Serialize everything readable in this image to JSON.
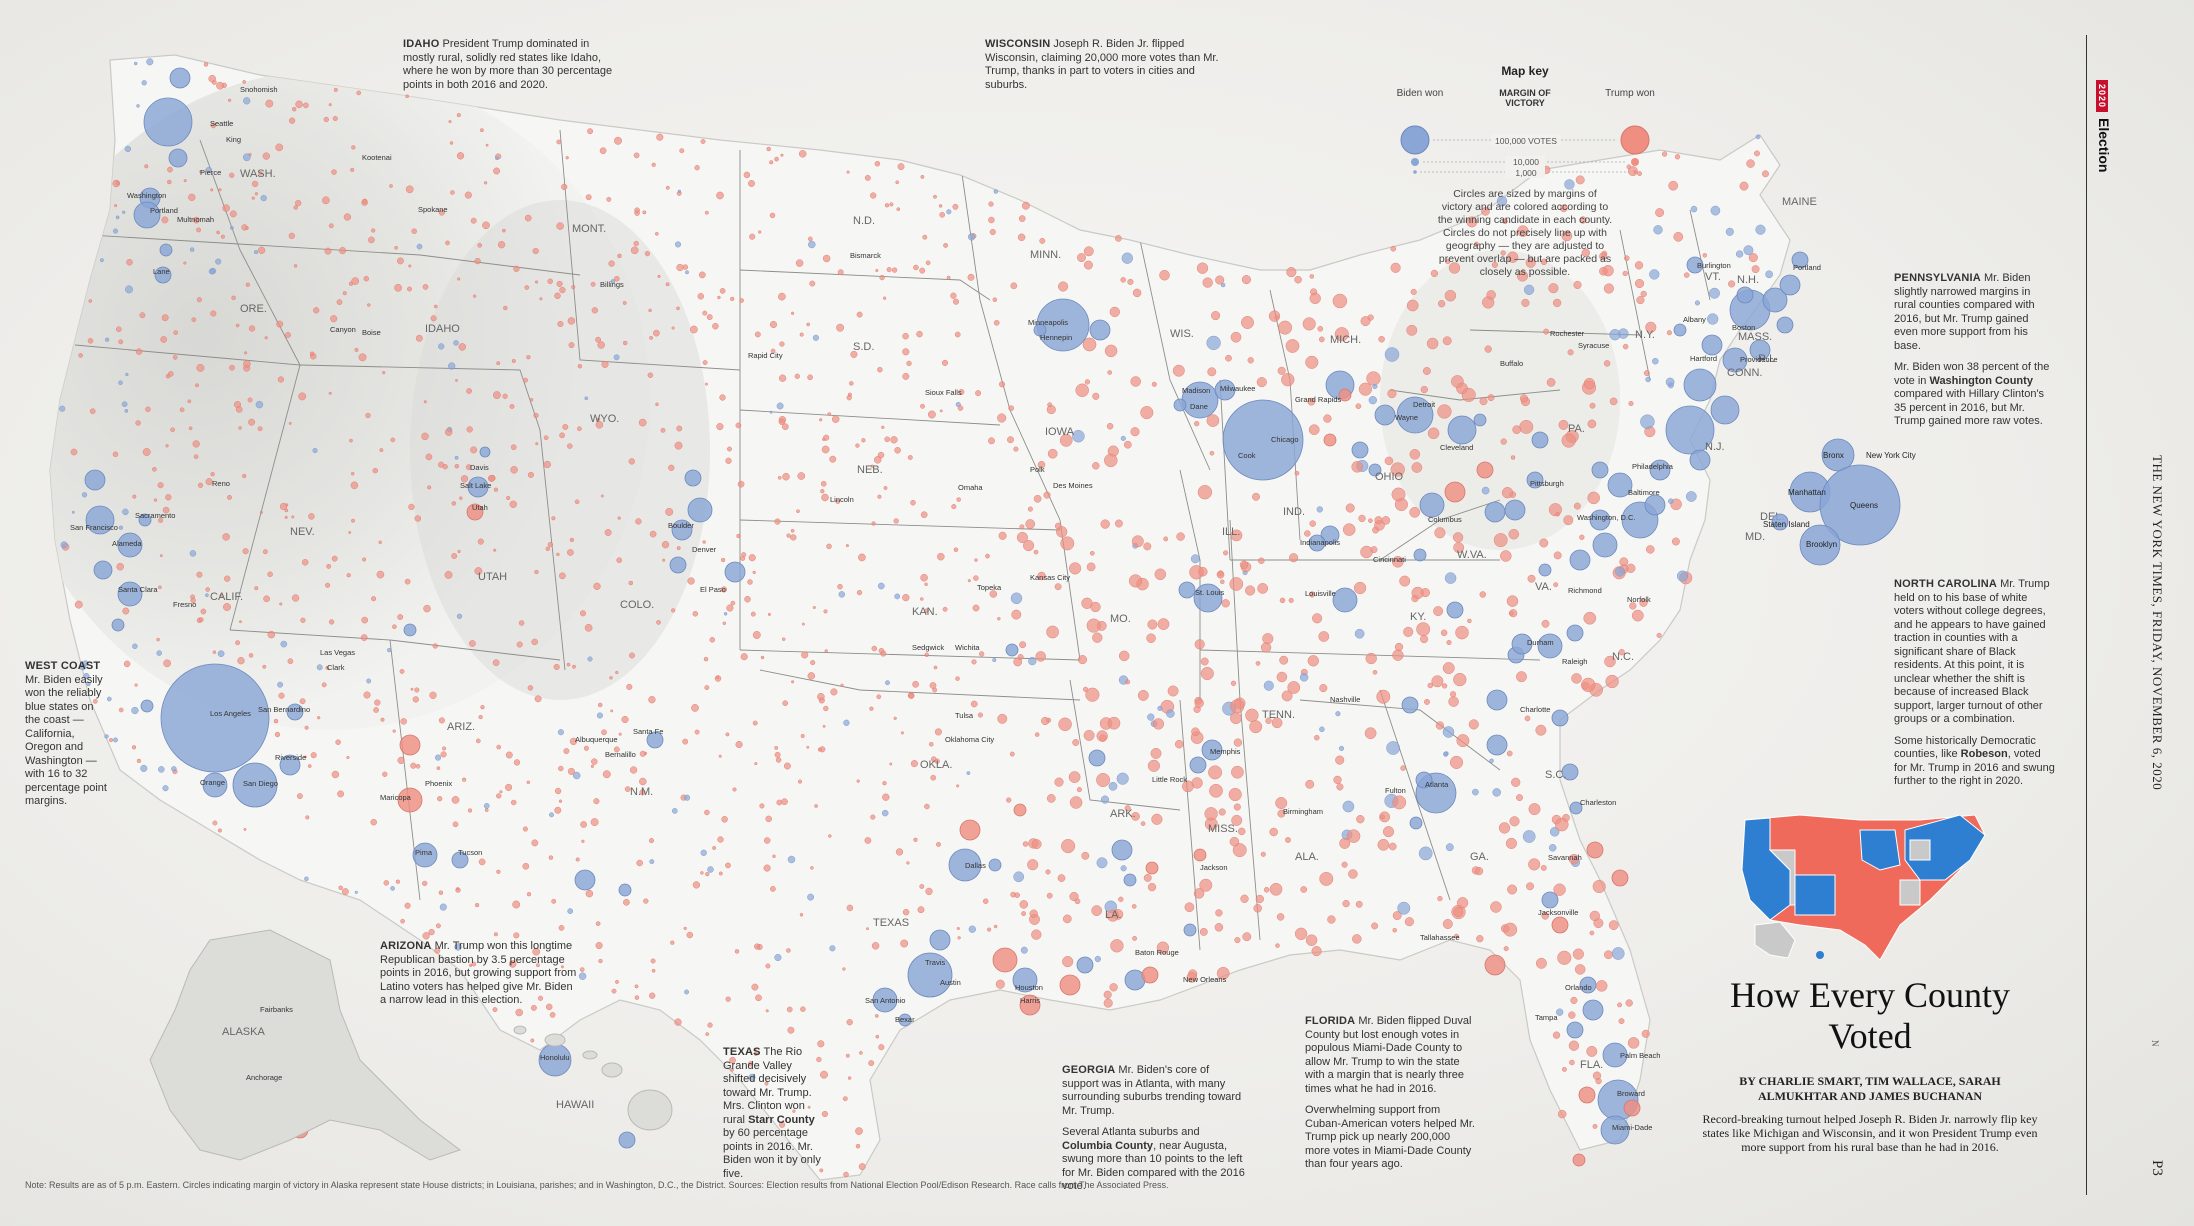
{
  "section": {
    "badge": "2020",
    "label": "Election"
  },
  "paper_line": "THE NEW YORK TIMES, FRIDAY, NOVEMBER 6, 2020",
  "page_number": "P3",
  "n_mark": "N",
  "headline": "How Every County Voted",
  "byline": "By CHARLIE SMART, TIM WALLACE, SARAH ALMUKHTAR and JAMES BUCHANAN",
  "dek": "Record-breaking turnout helped Joseph R. Biden Jr. narrowly flip key states like Michigan and Wisconsin, and it won President Trump even more support from his rural base than he had in 2016.",
  "note": "Note: Results are as of 5 p.m. Eastern. Circles indicating margin of victory in Alaska represent state House districts; in Louisiana, parishes; and in Washington, D.C., the District. Sources: Election results from National Election Pool/Edison Research. Race calls from The Associated Press.",
  "map_key": {
    "title": "Map key",
    "biden_label": "Biden won",
    "margin_label": "MARGIN OF VICTORY",
    "trump_label": "Trump won",
    "sizes": [
      "100,000 VOTES",
      "10,000",
      "1,000"
    ],
    "description": "Circles are sized by margins of victory and are colored according to the winning candidate in each county. Circles do not precisely line up with geography — they are adjusted to prevent overlap — but are packed as closely as possible."
  },
  "colors": {
    "biden": "#8aa6d6",
    "trump": "#ee8f82",
    "inset_biden": "#2e7fd1",
    "inset_trump": "#ef6a5a",
    "inset_other": "#c9c9c9"
  },
  "annotations": {
    "idaho": {
      "head": "IDAHO",
      "body": "President Trump dominated in mostly rural, solidly red states like Idaho, where he won by more than 30 percentage points in both 2016 and 2020."
    },
    "wisconsin": {
      "head": "WISCONSIN",
      "body": "Joseph R. Biden Jr. flipped Wisconsin, claiming 20,000 more votes than Mr. Trump, thanks in part to voters in cities and suburbs."
    },
    "pennsylvania": {
      "head": "PENNSYLVANIA",
      "body": "Mr. Biden slightly narrowed margins in rural counties compared with 2016, but Mr. Trump gained even more support from his base.",
      "body2_pre": "Mr. Biden won 38 percent of the vote in ",
      "body2_bold": "Washington County",
      "body2_post": " compared with Hillary Clinton's 35 percent in 2016, but Mr. Trump gained more raw votes."
    },
    "north_carolina": {
      "head": "NORTH CAROLINA",
      "body": "Mr. Trump held on to his base of white voters without college degrees, and he appears to have gained traction in counties with a significant share of Black residents. At this point, it is unclear whether the shift is because of increased Black support, larger turnout of other groups or a combination.",
      "body2_pre": "Some historically Democratic counties, like ",
      "body2_bold": "Robeson",
      "body2_post": ", voted for Mr. Trump in 2016 and swung further to the right in 2020."
    },
    "west_coast": {
      "head": "WEST COAST",
      "body": "Mr. Biden easily won the reliably blue states on the coast — California, Oregon and Washington — with 16 to 32 percentage point margins."
    },
    "arizona": {
      "head": "ARIZONA",
      "body": "Mr. Trump won this longtime Republican bastion by 3.5 percentage points in 2016, but growing support from Latino voters has helped give Mr. Biden a narrow lead in this election."
    },
    "texas": {
      "head": "TEXAS",
      "body_pre": "The Rio Grande Valley shifted decisively toward Mr. Trump. Mrs. Clinton won rural ",
      "body_bold": "Starr County",
      "body_post": " by 60 percentage points in 2016. Mr. Biden won it by only five."
    },
    "georgia": {
      "head": "GEORGIA",
      "body": "Mr. Biden's core of support was in Atlanta, with many surrounding suburbs trending toward Mr. Trump.",
      "body2_pre": "Several Atlanta suburbs and ",
      "body2_bold": "Columbia County",
      "body2_post": ", near Augusta, swung more than 10 points to the left for Mr. Biden compared with the 2016 vote."
    },
    "florida": {
      "head": "FLORIDA",
      "body": "Mr. Biden flipped Duval County but lost enough votes in populous Miami-Dade County to allow Mr. Trump to win the state with a margin that is nearly three times what he had in 2016.",
      "body2": "Overwhelming support from Cuban-American voters helped Mr. Trump pick up nearly 200,000 more votes in Miami-Dade County than four years ago."
    }
  },
  "state_labels": [
    "WASH.",
    "ORE.",
    "CALIF.",
    "IDAHO",
    "NEV.",
    "MONT.",
    "WYO.",
    "UTAH",
    "ARIZ.",
    "COLO.",
    "N.M.",
    "N.D.",
    "S.D.",
    "NEB.",
    "KAN.",
    "OKLA.",
    "TEXAS",
    "MINN.",
    "IOWA",
    "MO.",
    "ARK.",
    "LA.",
    "WIS.",
    "ILL.",
    "MICH.",
    "IND.",
    "OHIO",
    "KY.",
    "TENN.",
    "MISS.",
    "ALA.",
    "GA.",
    "FLA.",
    "S.C.",
    "N.C.",
    "VA.",
    "W.VA.",
    "PA.",
    "N.Y.",
    "VT.",
    "N.H.",
    "MAINE",
    "MASS.",
    "CONN.",
    "R.I.",
    "N.J.",
    "DEL.",
    "MD.",
    "ALASKA",
    "HAWAII"
  ],
  "place_labels": [
    "Seattle",
    "King",
    "Snohomish",
    "Pierce",
    "Portland",
    "Multnomah",
    "Washington",
    "Lane",
    "Spokane",
    "Kootenai",
    "Boise",
    "Canyon",
    "Reno",
    "Las Vegas",
    "Clark",
    "Salt Lake",
    "Utah",
    "Davis",
    "Denver",
    "Boulder",
    "El Paso",
    "Albuquerque",
    "Bernalillo",
    "Santa Fe",
    "Phoenix",
    "Maricopa",
    "Tucson",
    "Pima",
    "Los Angeles",
    "San Diego",
    "Orange",
    "Riverside",
    "San Bernardino",
    "San Francisco",
    "Alameda",
    "Santa Clara",
    "Sacramento",
    "Fresno",
    "Billings",
    "Bismarck",
    "Sioux Falls",
    "Rapid City",
    "Omaha",
    "Lincoln",
    "Des Moines",
    "Polk",
    "Kansas City",
    "Wichita",
    "Sedgwick",
    "Topeka",
    "Oklahoma City",
    "Tulsa",
    "Dallas",
    "Houston",
    "Harris",
    "Austin",
    "Travis",
    "San Antonio",
    "Bexar",
    "Minneapolis",
    "Hennepin",
    "Milwaukee",
    "Madison",
    "Dane",
    "Chicago",
    "Cook",
    "St. Louis",
    "Detroit",
    "Wayne",
    "Grand Rapids",
    "Indianapolis",
    "Columbus",
    "Cleveland",
    "Cincinnati",
    "Louisville",
    "Nashville",
    "Memphis",
    "Atlanta",
    "Fulton",
    "Birmingham",
    "Jackson",
    "New Orleans",
    "Baton Rouge",
    "Little Rock",
    "Charlotte",
    "Raleigh",
    "Durham",
    "Richmond",
    "Norfolk",
    "Baltimore",
    "Washington, D.C.",
    "Philadelphia",
    "Pittsburgh",
    "Buffalo",
    "Rochester",
    "Syracuse",
    "Albany",
    "Boston",
    "Hartford",
    "Providence",
    "Portland",
    "Burlington",
    "Jacksonville",
    "Tampa",
    "Orlando",
    "Miami-Dade",
    "Broward",
    "Palm Beach",
    "Tallahassee",
    "Charleston",
    "Savannah",
    "Anchorage",
    "Fairbanks",
    "Honolulu",
    "Queens",
    "Brooklyn",
    "Manhattan",
    "Bronx",
    "Staten Island",
    "New York City"
  ]
}
